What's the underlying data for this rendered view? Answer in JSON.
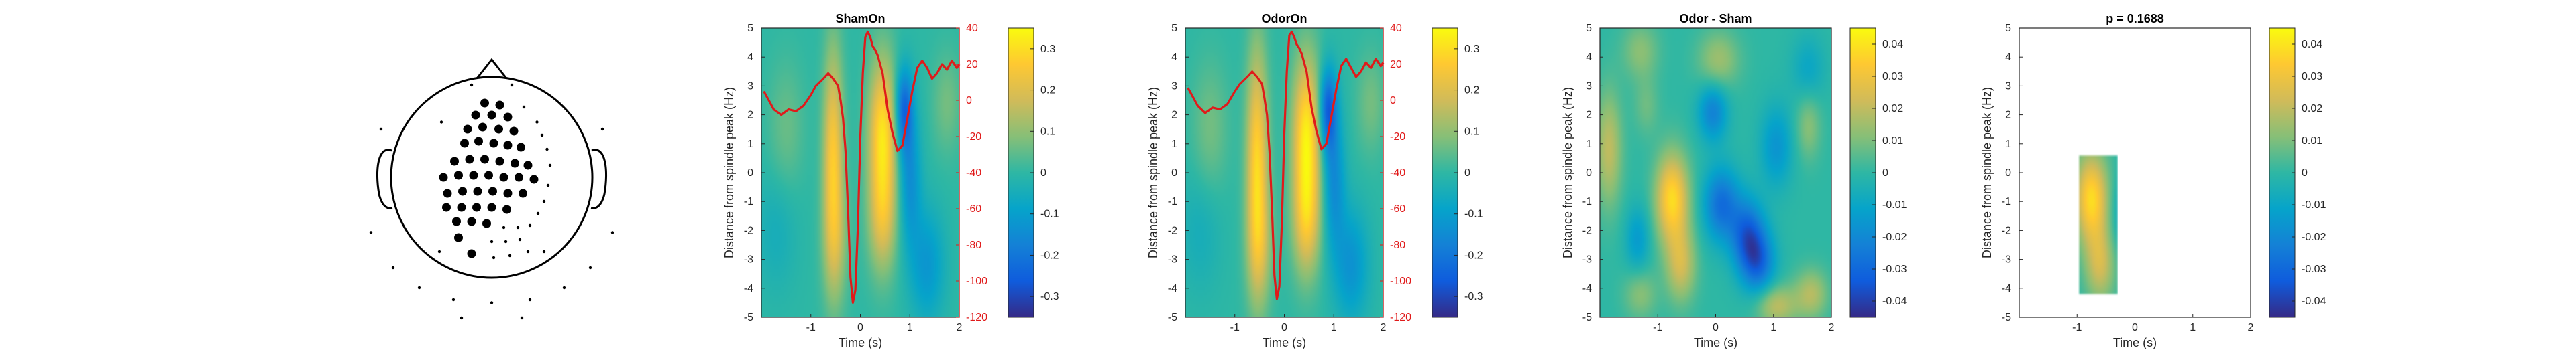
{
  "figure": {
    "topoplot": {
      "large_dots": [
        [
          -0.07,
          0.74
        ],
        [
          0.08,
          0.72
        ],
        [
          -0.16,
          0.62
        ],
        [
          0.0,
          0.62
        ],
        [
          0.16,
          0.6
        ],
        [
          -0.24,
          0.48
        ],
        [
          -0.09,
          0.5
        ],
        [
          0.07,
          0.48
        ],
        [
          0.22,
          0.46
        ],
        [
          -0.27,
          0.34
        ],
        [
          -0.13,
          0.36
        ],
        [
          0.02,
          0.34
        ],
        [
          0.16,
          0.32
        ],
        [
          0.29,
          0.3
        ],
        [
          -0.37,
          0.16
        ],
        [
          -0.22,
          0.18
        ],
        [
          -0.07,
          0.18
        ],
        [
          0.08,
          0.16
        ],
        [
          0.23,
          0.14
        ],
        [
          0.36,
          0.12
        ],
        [
          -0.48,
          0.0
        ],
        [
          -0.33,
          0.02
        ],
        [
          -0.18,
          0.02
        ],
        [
          -0.03,
          0.02
        ],
        [
          0.12,
          0.0
        ],
        [
          0.27,
          0.0
        ],
        [
          0.42,
          -0.02
        ],
        [
          -0.44,
          -0.16
        ],
        [
          -0.29,
          -0.14
        ],
        [
          -0.14,
          -0.14
        ],
        [
          0.01,
          -0.14
        ],
        [
          0.16,
          -0.16
        ],
        [
          0.31,
          -0.16
        ],
        [
          -0.45,
          -0.3
        ],
        [
          -0.3,
          -0.3
        ],
        [
          -0.15,
          -0.3
        ],
        [
          0.0,
          -0.3
        ],
        [
          0.15,
          -0.32
        ],
        [
          -0.35,
          -0.44
        ],
        [
          -0.2,
          -0.44
        ],
        [
          -0.05,
          -0.46
        ],
        [
          -0.33,
          -0.6
        ],
        [
          -0.2,
          -0.76
        ]
      ],
      "small_dots": [
        [
          -0.2,
          0.92
        ],
        [
          0.2,
          0.92
        ],
        [
          0.32,
          0.7
        ],
        [
          0.45,
          0.55
        ],
        [
          0.5,
          0.42
        ],
        [
          0.55,
          0.28
        ],
        [
          0.58,
          0.12
        ],
        [
          0.56,
          -0.08
        ],
        [
          0.52,
          -0.24
        ],
        [
          0.46,
          -0.36
        ],
        [
          0.38,
          -0.48
        ],
        [
          0.26,
          -0.5
        ],
        [
          0.12,
          -0.5
        ],
        [
          0.28,
          -0.62
        ],
        [
          0.14,
          -0.64
        ],
        [
          0.0,
          -0.64
        ],
        [
          0.02,
          -0.8
        ],
        [
          0.18,
          -0.78
        ],
        [
          0.36,
          -0.74
        ],
        [
          -0.5,
          0.55
        ],
        [
          -0.52,
          -0.74
        ],
        [
          0.52,
          -0.74
        ],
        [
          -1.1,
          0.48
        ],
        [
          1.1,
          0.48
        ],
        [
          -1.2,
          -0.55
        ],
        [
          1.2,
          -0.55
        ],
        [
          -0.98,
          -0.9
        ],
        [
          0.98,
          -0.9
        ],
        [
          -0.72,
          -1.1
        ],
        [
          0.72,
          -1.1
        ],
        [
          -0.38,
          -1.22
        ],
        [
          0.0,
          -1.25
        ],
        [
          0.38,
          -1.22
        ],
        [
          -0.3,
          -1.4
        ],
        [
          0.3,
          -1.4
        ]
      ]
    },
    "panels": [
      {
        "chart_data": {
          "type": "heatmap",
          "title": "ShamOn",
          "xlabel": "Time (s)",
          "ylabel": "Distance from spindle peak (Hz)",
          "xlim": [
            -2,
            2
          ],
          "ylim": [
            -5,
            5
          ],
          "xticks": [
            -1,
            0,
            1,
            2
          ],
          "yticks": [
            -5,
            -4,
            -3,
            -2,
            -1,
            0,
            1,
            2,
            3,
            4,
            5
          ],
          "clim": [
            -0.35,
            0.35
          ],
          "colorbar_ticks": [
            -0.3,
            -0.2,
            -0.1,
            0,
            0.1,
            0.2,
            0.3
          ],
          "blobs": [
            {
              "t": -0.55,
              "f": 0.5,
              "st": 0.14,
              "sf": 2.6,
              "a": 0.26
            },
            {
              "t": -0.5,
              "f": -2.5,
              "st": 0.18,
              "sf": 1.5,
              "a": 0.1
            },
            {
              "t": 0.45,
              "f": 1.4,
              "st": 0.2,
              "sf": 1.8,
              "a": 0.3
            },
            {
              "t": 0.45,
              "f": -1.6,
              "st": 0.2,
              "sf": 1.4,
              "a": 0.18
            },
            {
              "t": 0.88,
              "f": 2.2,
              "st": 0.13,
              "sf": 1.0,
              "a": -0.24
            },
            {
              "t": 1.0,
              "f": -0.2,
              "st": 0.16,
              "sf": 1.6,
              "a": -0.14
            },
            {
              "t": 1.35,
              "f": -3.2,
              "st": 0.25,
              "sf": 1.4,
              "a": -0.12
            },
            {
              "t": -1.5,
              "f": 1.5,
              "st": 0.25,
              "sf": 1.6,
              "a": 0.06
            },
            {
              "t": -1.7,
              "f": -2.0,
              "st": 0.3,
              "sf": 1.5,
              "a": -0.05
            },
            {
              "t": 1.75,
              "f": 2.4,
              "st": 0.2,
              "sf": 1.2,
              "a": 0.07
            }
          ],
          "erp": {
            "ylim": [
              -120,
              40
            ],
            "ticks": [
              -120,
              -100,
              -80,
              -60,
              -40,
              -20,
              0,
              20,
              40
            ],
            "t": [
              -1.95,
              -1.85,
              -1.75,
              -1.6,
              -1.45,
              -1.3,
              -1.15,
              -1.0,
              -0.9,
              -0.75,
              -0.65,
              -0.55,
              -0.45,
              -0.4,
              -0.35,
              -0.3,
              -0.25,
              -0.2,
              -0.15,
              -0.1,
              -0.05,
              0.0,
              0.05,
              0.1,
              0.15,
              0.2,
              0.25,
              0.3,
              0.35,
              0.45,
              0.55,
              0.65,
              0.75,
              0.85,
              0.95,
              1.05,
              1.15,
              1.25,
              1.35,
              1.45,
              1.55,
              1.65,
              1.75,
              1.85,
              1.95,
              2.0
            ],
            "v": [
              5,
              0,
              -5,
              -8,
              -5,
              -6,
              -3,
              3,
              8,
              12,
              15,
              12,
              8,
              0,
              -10,
              -28,
              -60,
              -98,
              -112,
              -105,
              -70,
              -20,
              15,
              35,
              38,
              35,
              30,
              28,
              25,
              15,
              -5,
              -18,
              -28,
              -25,
              -10,
              5,
              18,
              22,
              18,
              12,
              15,
              20,
              17,
              22,
              18,
              20
            ]
          }
        }
      },
      {
        "chart_data": {
          "type": "heatmap",
          "title": "OdorOn",
          "xlabel": "Time (s)",
          "ylabel": "Distance from spindle peak (Hz)",
          "xlim": [
            -2,
            2
          ],
          "ylim": [
            -5,
            5
          ],
          "xticks": [
            -1,
            0,
            1,
            2
          ],
          "yticks": [
            -5,
            -4,
            -3,
            -2,
            -1,
            0,
            1,
            2,
            3,
            4,
            5
          ],
          "clim": [
            -0.35,
            0.35
          ],
          "colorbar_ticks": [
            -0.3,
            -0.2,
            -0.1,
            0,
            0.1,
            0.2,
            0.3
          ],
          "blobs": [
            {
              "t": -0.55,
              "f": 0.4,
              "st": 0.15,
              "sf": 2.7,
              "a": 0.28
            },
            {
              "t": -0.5,
              "f": -2.6,
              "st": 0.18,
              "sf": 1.5,
              "a": 0.12
            },
            {
              "t": 0.45,
              "f": 1.3,
              "st": 0.2,
              "sf": 1.9,
              "a": 0.32
            },
            {
              "t": 0.45,
              "f": -1.7,
              "st": 0.2,
              "sf": 1.4,
              "a": 0.2
            },
            {
              "t": 0.88,
              "f": 2.2,
              "st": 0.13,
              "sf": 1.0,
              "a": -0.26
            },
            {
              "t": 1.0,
              "f": -0.3,
              "st": 0.16,
              "sf": 1.6,
              "a": -0.15
            },
            {
              "t": 1.35,
              "f": -3.2,
              "st": 0.25,
              "sf": 1.4,
              "a": -0.13
            },
            {
              "t": -1.5,
              "f": 1.5,
              "st": 0.25,
              "sf": 1.6,
              "a": 0.07
            },
            {
              "t": -1.7,
              "f": -2.0,
              "st": 0.3,
              "sf": 1.5,
              "a": -0.05
            },
            {
              "t": 1.75,
              "f": 2.4,
              "st": 0.2,
              "sf": 1.2,
              "a": 0.07
            }
          ],
          "erp": {
            "ylim": [
              -120,
              40
            ],
            "ticks": [
              -120,
              -100,
              -80,
              -60,
              -40,
              -20,
              0,
              20,
              40
            ],
            "t": [
              -1.95,
              -1.85,
              -1.75,
              -1.6,
              -1.45,
              -1.3,
              -1.15,
              -1.0,
              -0.9,
              -0.75,
              -0.65,
              -0.55,
              -0.45,
              -0.4,
              -0.35,
              -0.3,
              -0.25,
              -0.2,
              -0.15,
              -0.1,
              -0.05,
              0.0,
              0.05,
              0.1,
              0.15,
              0.2,
              0.25,
              0.3,
              0.35,
              0.45,
              0.55,
              0.65,
              0.75,
              0.85,
              0.95,
              1.05,
              1.15,
              1.25,
              1.35,
              1.45,
              1.55,
              1.65,
              1.75,
              1.85,
              1.95,
              2.0
            ],
            "v": [
              7,
              2,
              -3,
              -7,
              -4,
              -5,
              -2,
              5,
              9,
              13,
              16,
              13,
              9,
              1,
              -8,
              -28,
              -60,
              -97,
              -110,
              -103,
              -68,
              -18,
              16,
              36,
              38,
              35,
              31,
              29,
              26,
              16,
              -4,
              -17,
              -27,
              -24,
              -9,
              6,
              19,
              23,
              18,
              13,
              16,
              21,
              18,
              23,
              19,
              21
            ]
          }
        }
      },
      {
        "chart_data": {
          "type": "heatmap",
          "title": "Odor - Sham",
          "xlabel": "Time (s)",
          "ylabel": "Distance from spindle peak (Hz)",
          "xlim": [
            -2,
            2
          ],
          "ylim": [
            -5,
            5
          ],
          "xticks": [
            -1,
            0,
            1,
            2
          ],
          "yticks": [
            -5,
            -4,
            -3,
            -2,
            -1,
            0,
            1,
            2,
            3,
            4,
            5
          ],
          "clim": [
            -0.045,
            0.045
          ],
          "colorbar_ticks": [
            -0.04,
            -0.03,
            -0.02,
            -0.01,
            0,
            0.01,
            0.02,
            0.03,
            0.04
          ],
          "blobs": [
            {
              "t": -0.75,
              "f": -0.9,
              "st": 0.2,
              "sf": 1.1,
              "a": 0.038
            },
            {
              "t": -0.6,
              "f": -3.2,
              "st": 0.18,
              "sf": 0.9,
              "a": 0.022
            },
            {
              "t": -1.85,
              "f": 0.8,
              "st": 0.16,
              "sf": 1.4,
              "a": 0.02
            },
            {
              "t": -1.3,
              "f": 4.2,
              "st": 0.22,
              "sf": 0.7,
              "a": 0.012
            },
            {
              "t": 0.05,
              "f": 3.9,
              "st": 0.25,
              "sf": 0.7,
              "a": 0.015
            },
            {
              "t": 1.05,
              "f": -4.6,
              "st": 0.25,
              "sf": 0.5,
              "a": 0.02
            },
            {
              "t": 1.65,
              "f": -4.2,
              "st": 0.2,
              "sf": 0.6,
              "a": 0.018
            },
            {
              "t": -1.3,
              "f": -4.2,
              "st": 0.2,
              "sf": 0.6,
              "a": 0.012
            },
            {
              "t": 1.6,
              "f": 1.6,
              "st": 0.15,
              "sf": 0.8,
              "a": 0.012
            },
            {
              "t": 0.1,
              "f": -1.1,
              "st": 0.22,
              "sf": 0.9,
              "a": -0.028
            },
            {
              "t": 0.55,
              "f": -2.2,
              "st": 0.2,
              "sf": 0.9,
              "a": -0.03
            },
            {
              "t": 0.75,
              "f": -3.1,
              "st": 0.2,
              "sf": 0.8,
              "a": -0.026
            },
            {
              "t": -0.05,
              "f": 2.1,
              "st": 0.18,
              "sf": 0.7,
              "a": -0.022
            },
            {
              "t": 1.05,
              "f": 0.9,
              "st": 0.2,
              "sf": 1.0,
              "a": -0.016
            },
            {
              "t": -1.35,
              "f": -2.3,
              "st": 0.15,
              "sf": 0.8,
              "a": -0.014
            },
            {
              "t": 1.6,
              "f": 3.6,
              "st": 0.2,
              "sf": 0.8,
              "a": -0.01
            },
            {
              "t": -1.2,
              "f": 2.3,
              "st": 0.15,
              "sf": 0.7,
              "a": 0.008
            }
          ]
        }
      },
      {
        "chart_data": {
          "type": "heatmap",
          "title": "p = 0.1688",
          "xlabel": "Time (s)",
          "ylabel": "Distance from spindle peak (Hz)",
          "xlim": [
            -2,
            2
          ],
          "ylim": [
            -5,
            5
          ],
          "xticks": [
            -1,
            0,
            1,
            2
          ],
          "yticks": [
            -5,
            -4,
            -3,
            -2,
            -1,
            0,
            1,
            2,
            3,
            4,
            5
          ],
          "clim": [
            -0.045,
            0.045
          ],
          "colorbar_ticks": [
            -0.04,
            -0.03,
            -0.02,
            -0.01,
            0,
            0.01,
            0.02,
            0.03,
            0.04
          ],
          "mask": {
            "t": [
              -0.95,
              -0.3
            ],
            "f": [
              -4.2,
              0.6
            ]
          },
          "blobs": [
            {
              "t": -0.75,
              "f": -0.9,
              "st": 0.2,
              "sf": 1.1,
              "a": 0.038
            },
            {
              "t": -0.6,
              "f": -3.2,
              "st": 0.18,
              "sf": 0.9,
              "a": 0.022
            },
            {
              "t": -0.3,
              "f": -1.8,
              "st": 0.12,
              "sf": 0.9,
              "a": -0.004
            },
            {
              "t": 0.1,
              "f": -1.1,
              "st": 0.22,
              "sf": 0.9,
              "a": -0.028
            }
          ]
        }
      }
    ]
  },
  "colors": {
    "erp_line": "#e01a1a",
    "erp_axis": "#e01a1a",
    "axis": "#262626"
  }
}
